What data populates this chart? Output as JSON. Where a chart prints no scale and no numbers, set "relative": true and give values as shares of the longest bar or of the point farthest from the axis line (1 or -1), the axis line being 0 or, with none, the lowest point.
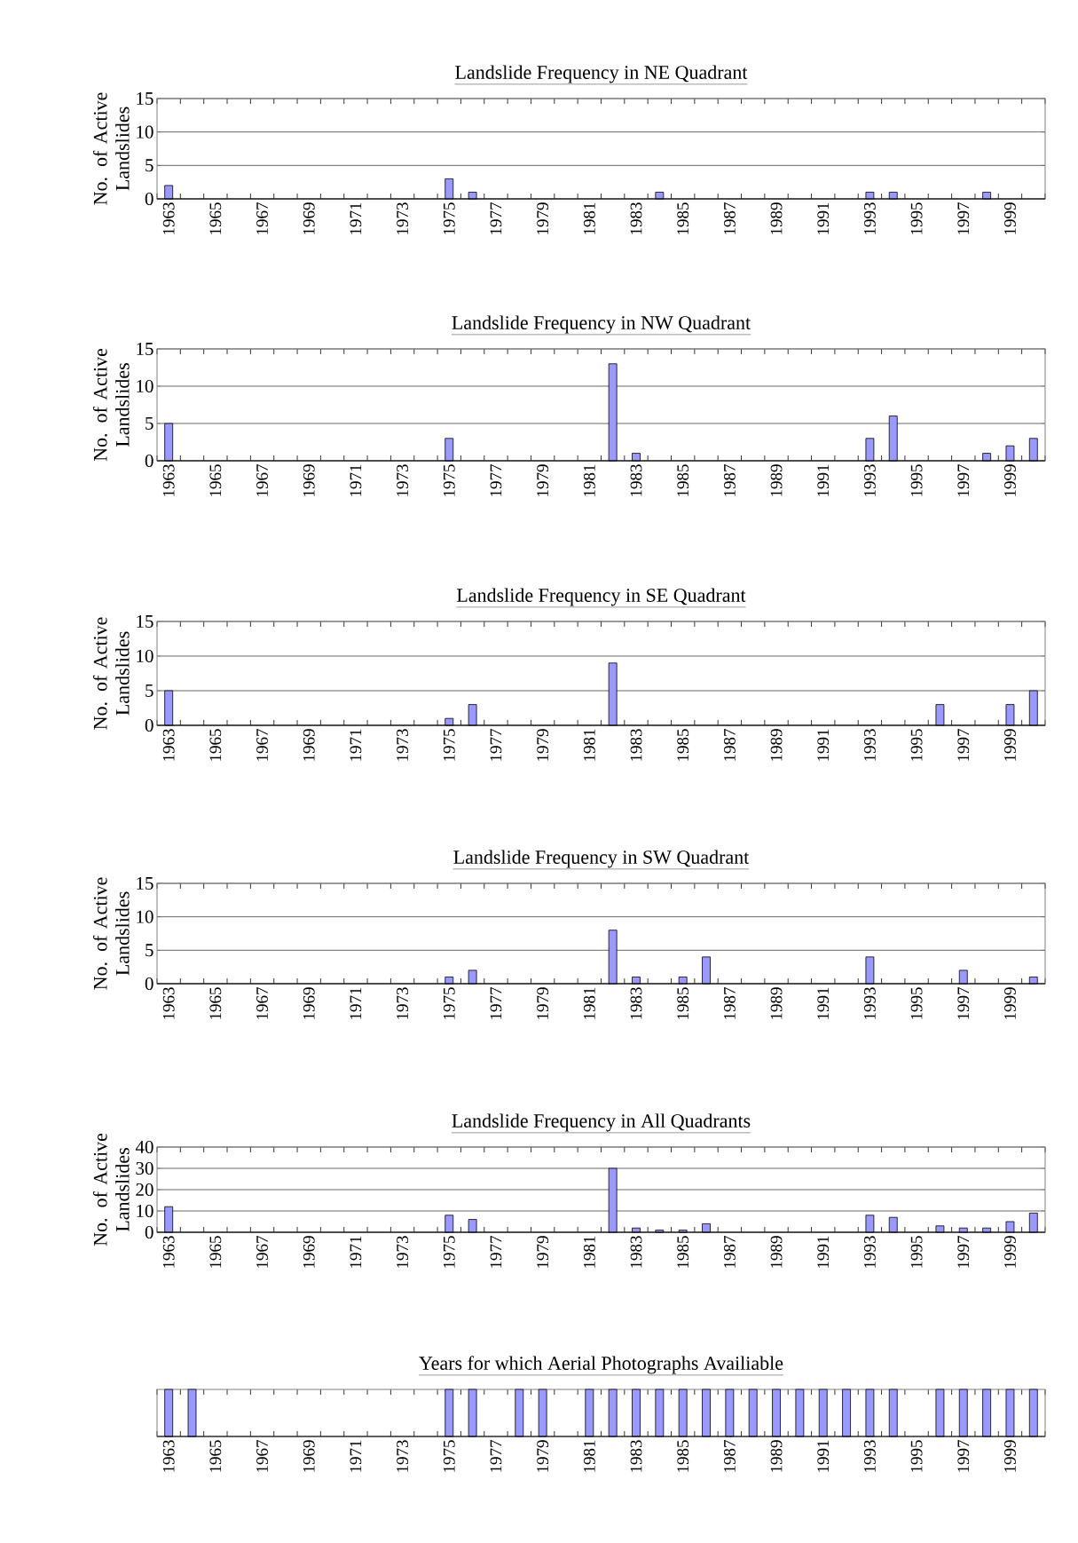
{
  "chart_data": [
    {
      "type": "bar",
      "title": "Landslide Frequency in NE Quadrant",
      "ylabel": "No. of Active Landslides",
      "categories": [
        "1963",
        null,
        "1965",
        null,
        "1967",
        null,
        "1969",
        null,
        "1971",
        null,
        "1973",
        null,
        "1975",
        null,
        "1977",
        null,
        "1979",
        null,
        "1981",
        null,
        "1983",
        null,
        "1985",
        null,
        "1987",
        null,
        "1989",
        null,
        "1991",
        null,
        "1993",
        null,
        "1995",
        null,
        "1997",
        null,
        "1999",
        null
      ],
      "values": [
        2,
        0,
        0,
        0,
        0,
        0,
        0,
        0,
        0,
        0,
        0,
        0,
        3,
        1,
        0,
        0,
        0,
        0,
        0,
        0,
        0,
        1,
        0,
        0,
        0,
        0,
        0,
        0,
        0,
        0,
        1,
        1,
        0,
        0,
        0,
        1,
        0,
        0
      ],
      "color": "#9999ff",
      "ylim": [
        0,
        15
      ],
      "yticks": [
        0,
        5,
        10,
        15
      ],
      "grid": "y"
    },
    {
      "type": "bar",
      "title": "Landslide Frequency in NW Quadrant",
      "ylabel": "No. of Active Landslides",
      "categories": [
        "1963",
        null,
        "1965",
        null,
        "1967",
        null,
        "1969",
        null,
        "1971",
        null,
        "1973",
        null,
        "1975",
        null,
        "1977",
        null,
        "1979",
        null,
        "1981",
        null,
        "1983",
        null,
        "1985",
        null,
        "1987",
        null,
        "1989",
        null,
        "1991",
        null,
        "1993",
        null,
        "1995",
        null,
        "1997",
        null,
        "1999",
        null
      ],
      "values": [
        5,
        0,
        0,
        0,
        0,
        0,
        0,
        0,
        0,
        0,
        0,
        0,
        3,
        0,
        0,
        0,
        0,
        0,
        0,
        13,
        1,
        0,
        0,
        0,
        0,
        0,
        0,
        0,
        0,
        0,
        3,
        6,
        0,
        0,
        0,
        1,
        2,
        3
      ],
      "color": "#9999ff",
      "ylim": [
        0,
        15
      ],
      "yticks": [
        0,
        5,
        10,
        15
      ],
      "grid": "y"
    },
    {
      "type": "bar",
      "title": "Landslide Frequency in SE Quadrant",
      "ylabel": "No. of Active Landslides",
      "categories": [
        "1963",
        null,
        "1965",
        null,
        "1967",
        null,
        "1969",
        null,
        "1971",
        null,
        "1973",
        null,
        "1975",
        null,
        "1977",
        null,
        "1979",
        null,
        "1981",
        null,
        "1983",
        null,
        "1985",
        null,
        "1987",
        null,
        "1989",
        null,
        "1991",
        null,
        "1993",
        null,
        "1995",
        null,
        "1997",
        null,
        "1999",
        null
      ],
      "values": [
        5,
        0,
        0,
        0,
        0,
        0,
        0,
        0,
        0,
        0,
        0,
        0,
        1,
        3,
        0,
        0,
        0,
        0,
        0,
        9,
        0,
        0,
        0,
        0,
        0,
        0,
        0,
        0,
        0,
        0,
        0,
        0,
        0,
        3,
        0,
        0,
        3,
        5
      ],
      "color": "#9999ff",
      "ylim": [
        0,
        15
      ],
      "yticks": [
        0,
        5,
        10,
        15
      ],
      "grid": "y"
    },
    {
      "type": "bar",
      "title": "Landslide Frequency in SW Quadrant",
      "ylabel": "No. of Active Landslides",
      "categories": [
        "1963",
        null,
        "1965",
        null,
        "1967",
        null,
        "1969",
        null,
        "1971",
        null,
        "1973",
        null,
        "1975",
        null,
        "1977",
        null,
        "1979",
        null,
        "1981",
        null,
        "1983",
        null,
        "1985",
        null,
        "1987",
        null,
        "1989",
        null,
        "1991",
        null,
        "1993",
        null,
        "1995",
        null,
        "1997",
        null,
        "1999",
        null
      ],
      "values": [
        0,
        0,
        0,
        0,
        0,
        0,
        0,
        0,
        0,
        0,
        0,
        0,
        1,
        2,
        0,
        0,
        0,
        0,
        0,
        8,
        1,
        0,
        1,
        4,
        0,
        0,
        0,
        0,
        0,
        0,
        4,
        0,
        0,
        0,
        2,
        0,
        0,
        1
      ],
      "color": "#9999ff",
      "ylim": [
        0,
        15
      ],
      "yticks": [
        0,
        5,
        10,
        15
      ],
      "grid": "y"
    },
    {
      "type": "bar",
      "title": "Landslide Frequency in All Quadrants",
      "ylabel": "No. of Active Landslides",
      "categories": [
        "1963",
        null,
        "1965",
        null,
        "1967",
        null,
        "1969",
        null,
        "1971",
        null,
        "1973",
        null,
        "1975",
        null,
        "1977",
        null,
        "1979",
        null,
        "1981",
        null,
        "1983",
        null,
        "1985",
        null,
        "1987",
        null,
        "1989",
        null,
        "1991",
        null,
        "1993",
        null,
        "1995",
        null,
        "1997",
        null,
        "1999",
        null
      ],
      "values": [
        12,
        0,
        0,
        0,
        0,
        0,
        0,
        0,
        0,
        0,
        0,
        0,
        8,
        6,
        0,
        0,
        0,
        0,
        0,
        30,
        2,
        1,
        1,
        4,
        0,
        0,
        0,
        0,
        0,
        0,
        8,
        7,
        0,
        3,
        2,
        2,
        5,
        9
      ],
      "color": "#9999ff",
      "ylim": [
        0,
        40
      ],
      "yticks": [
        0,
        10,
        20,
        30,
        40
      ],
      "grid": "y"
    },
    {
      "type": "bar",
      "title": "Years for which Aerial Photographs Availiable",
      "categories": [
        "1963",
        null,
        "1965",
        null,
        "1967",
        null,
        "1969",
        null,
        "1971",
        null,
        "1973",
        null,
        "1975",
        null,
        "1977",
        null,
        "1979",
        null,
        "1981",
        null,
        "1983",
        null,
        "1985",
        null,
        "1987",
        null,
        "1989",
        null,
        "1991",
        null,
        "1993",
        null,
        "1995",
        null,
        "1997",
        null,
        "1999",
        null
      ],
      "values": [
        1,
        1,
        0,
        0,
        0,
        0,
        0,
        0,
        0,
        0,
        0,
        0,
        1,
        1,
        0,
        1,
        1,
        0,
        1,
        1,
        1,
        1,
        1,
        1,
        1,
        1,
        1,
        1,
        1,
        1,
        1,
        1,
        0,
        1,
        1,
        1,
        1,
        1
      ],
      "color": "#9999ff",
      "relative": true,
      "tick_labels": "x"
    }
  ]
}
